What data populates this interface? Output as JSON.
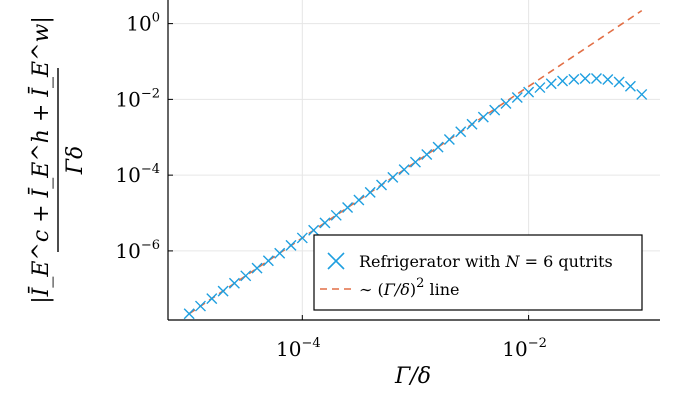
{
  "chart_data": {
    "type": "scatter",
    "x_scale": "log",
    "y_scale": "log",
    "xlim": [
      6.5e-06,
      0.145
    ],
    "ylim": [
      1.5e-08,
      4.2
    ],
    "x_ticks": [
      {
        "base": "10",
        "exp": "−4",
        "value": 0.0001
      },
      {
        "base": "10",
        "exp": "−2",
        "value": 0.01
      }
    ],
    "y_ticks": [
      {
        "base": "10",
        "exp": "0",
        "value": 1
      },
      {
        "base": "10",
        "exp": "−2",
        "value": 0.01
      },
      {
        "base": "10",
        "exp": "−4",
        "value": 0.0001
      },
      {
        "base": "10",
        "exp": "−6",
        "value": 1e-06
      }
    ],
    "xlabel": "Γ/δ",
    "ylabel_numerator": "|Ī_E^c + Ī_E^h + Ī_E^w|",
    "ylabel_denominator": "Γδ",
    "grid": true,
    "legend_position": "bottom-right",
    "series": [
      {
        "name": "Refrigerator with N = 6 qutrits",
        "kind": "markers",
        "marker": "x",
        "color": "#1e9fe0",
        "x": [
          1e-05,
          1.259e-05,
          1.585e-05,
          1.995e-05,
          2.512e-05,
          3.162e-05,
          3.981e-05,
          5.012e-05,
          6.31e-05,
          7.943e-05,
          0.0001,
          0.0001259,
          0.0001585,
          0.0001995,
          0.0002512,
          0.0003162,
          0.0003981,
          0.0005012,
          0.000631,
          0.0007943,
          0.001,
          0.001259,
          0.001585,
          0.001995,
          0.002512,
          0.003162,
          0.003981,
          0.005012,
          0.00631,
          0.007943,
          0.01,
          0.01259,
          0.01585,
          0.01995,
          0.02512,
          0.03162,
          0.03981,
          0.05012,
          0.0631,
          0.07943,
          0.1
        ],
        "y": [
          2.2e-08,
          3.5e-08,
          5.5e-08,
          8.7e-08,
          1.4e-07,
          2.2e-07,
          3.5e-07,
          5.5e-07,
          8.7e-07,
          1.4e-06,
          2.2e-06,
          3.5e-06,
          5.5e-06,
          8.7e-06,
          1.4e-05,
          2.2e-05,
          3.5e-05,
          5.5e-05,
          8.7e-05,
          0.00014,
          0.00022,
          0.00035,
          0.00055,
          0.00087,
          0.0014,
          0.0022,
          0.0034,
          0.0052,
          0.0078,
          0.0112,
          0.0155,
          0.0205,
          0.0258,
          0.0305,
          0.0338,
          0.0355,
          0.0356,
          0.0335,
          0.0288,
          0.0222,
          0.0135
        ]
      },
      {
        "name": "∼ (Γ/δ)² line",
        "kind": "line",
        "style": "dashed",
        "color": "#e26f46",
        "x": [
          1e-05,
          0.1
        ],
        "y": [
          2.2e-08,
          2.2
        ]
      }
    ],
    "legend": [
      {
        "symbol": "x",
        "color": "#1e9fe0",
        "prefix": "Refrigerator with ",
        "math": "N",
        "suffix": " = 6 qutrits"
      },
      {
        "symbol": "dash",
        "color": "#e26f46",
        "prefix": "∼ (",
        "math": "Γ/δ",
        "suffix": ")",
        "sup": "2",
        "tail": " line"
      }
    ]
  }
}
